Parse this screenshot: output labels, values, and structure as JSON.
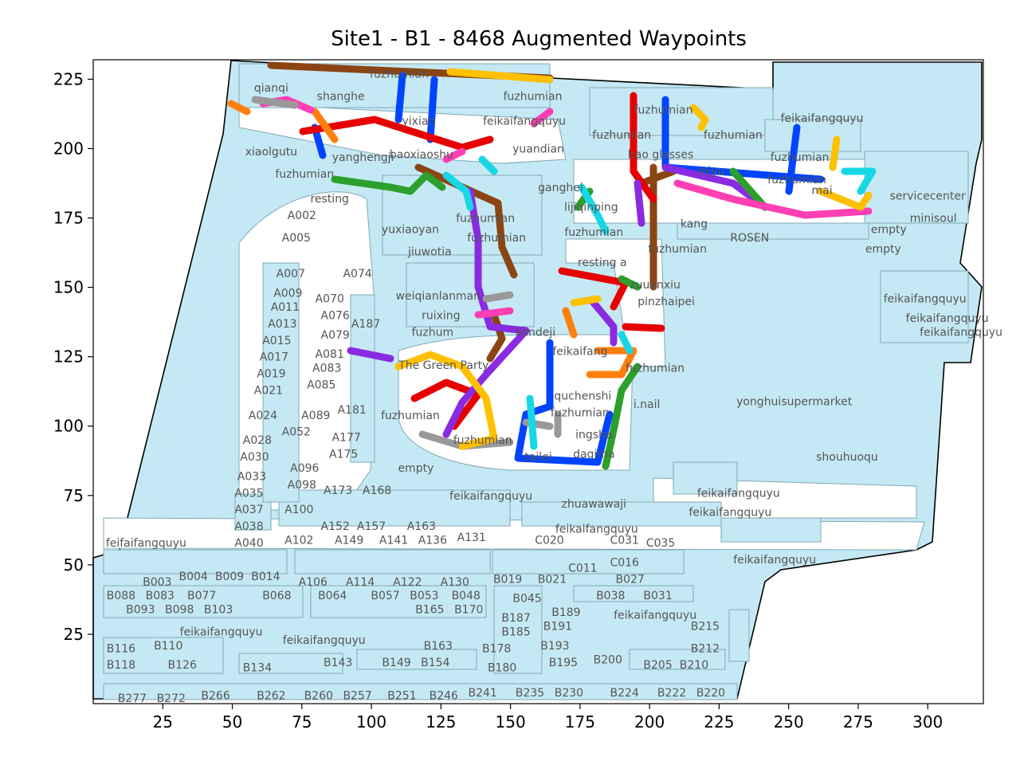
{
  "title": "Site1 - B1 - 8468 Augmented Waypoints",
  "xticks": [
    25,
    50,
    75,
    100,
    125,
    150,
    175,
    200,
    225,
    250,
    275,
    300
  ],
  "yticks": [
    25,
    50,
    75,
    100,
    125,
    150,
    175,
    200,
    225
  ],
  "xlim": [
    0,
    320
  ],
  "ylim": [
    0,
    232
  ],
  "colors": {
    "floor_fill": "#c5e9f4",
    "shop_edge": "#7fa9b5",
    "label": "#555555",
    "route_palette": [
      "#0044ff",
      "#ff7f0e",
      "#2ca02c",
      "#e60000",
      "#8a2be2",
      "#8b4513",
      "#ff3fb4",
      "#999999",
      "#ffc000",
      "#17d7e6"
    ]
  },
  "labels": [
    {
      "text": "qianqi",
      "x": 64,
      "y": 222
    },
    {
      "text": "shanghe",
      "x": 89,
      "y": 219
    },
    {
      "text": "fuzhumian",
      "x": 110,
      "y": 227
    },
    {
      "text": "fuzhumian",
      "x": 158,
      "y": 219
    },
    {
      "text": "yixian",
      "x": 117,
      "y": 210
    },
    {
      "text": "feikaifangquyu",
      "x": 155,
      "y": 210
    },
    {
      "text": "fuzhumian",
      "x": 205,
      "y": 214
    },
    {
      "text": "feikaifangquyu",
      "x": 262,
      "y": 211
    },
    {
      "text": "fuzhumian",
      "x": 190,
      "y": 205
    },
    {
      "text": "fuzhumian",
      "x": 230,
      "y": 205
    },
    {
      "text": "xiaolgutu",
      "x": 64,
      "y": 199
    },
    {
      "text": "yanghengji",
      "x": 97,
      "y": 197
    },
    {
      "text": "yuandian",
      "x": 160,
      "y": 200
    },
    {
      "text": "baoxiaoshu",
      "x": 118,
      "y": 198
    },
    {
      "text": "bao glasses",
      "x": 204,
      "y": 198
    },
    {
      "text": "miyu",
      "x": 222,
      "y": 192
    },
    {
      "text": "fuzhumian",
      "x": 254,
      "y": 197
    },
    {
      "text": "fuzhumian",
      "x": 253,
      "y": 189
    },
    {
      "text": "fuzhumian",
      "x": 76,
      "y": 191
    },
    {
      "text": "resting",
      "x": 85,
      "y": 182
    },
    {
      "text": "ganghei",
      "x": 168,
      "y": 186
    },
    {
      "text": "lijiqinping",
      "x": 179,
      "y": 179
    },
    {
      "text": "servicecenter",
      "x": 300,
      "y": 183
    },
    {
      "text": "minisoul",
      "x": 302,
      "y": 175
    },
    {
      "text": "mai",
      "x": 262,
      "y": 185
    },
    {
      "text": "fuzhumian",
      "x": 141,
      "y": 175
    },
    {
      "text": "yuxiaoyan",
      "x": 114,
      "y": 171
    },
    {
      "text": "fuzhumian",
      "x": 145,
      "y": 168
    },
    {
      "text": "A002",
      "x": 75,
      "y": 176
    },
    {
      "text": "fuzhumian",
      "x": 180,
      "y": 170
    },
    {
      "text": "kang",
      "x": 216,
      "y": 173
    },
    {
      "text": "ROSEN",
      "x": 236,
      "y": 168
    },
    {
      "text": "empty",
      "x": 286,
      "y": 171
    },
    {
      "text": "empty",
      "x": 284,
      "y": 164
    },
    {
      "text": "A005",
      "x": 73,
      "y": 168
    },
    {
      "text": "jiuwotia",
      "x": 121,
      "y": 163
    },
    {
      "text": "fuzhumian",
      "x": 210,
      "y": 164
    },
    {
      "text": "resting a",
      "x": 183,
      "y": 159
    },
    {
      "text": "A007",
      "x": 71,
      "y": 155
    },
    {
      "text": "A074",
      "x": 95,
      "y": 155
    },
    {
      "text": "zuuanxiu",
      "x": 202,
      "y": 151
    },
    {
      "text": "A009",
      "x": 70,
      "y": 148
    },
    {
      "text": "A070",
      "x": 85,
      "y": 146
    },
    {
      "text": "weiqianlanman",
      "x": 124,
      "y": 147
    },
    {
      "text": "pinzhaipei",
      "x": 206,
      "y": 145
    },
    {
      "text": "feikaifangquyu",
      "x": 299,
      "y": 146
    },
    {
      "text": "A011",
      "x": 69,
      "y": 143
    },
    {
      "text": "A076",
      "x": 87,
      "y": 140
    },
    {
      "text": "ruixing",
      "x": 125,
      "y": 140
    },
    {
      "text": "feikaifangquyu",
      "x": 307,
      "y": 139
    },
    {
      "text": "A013",
      "x": 68,
      "y": 137
    },
    {
      "text": "A187",
      "x": 98,
      "y": 137
    },
    {
      "text": "fuzhum",
      "x": 122,
      "y": 134
    },
    {
      "text": "kendeji",
      "x": 159,
      "y": 134
    },
    {
      "text": "A079",
      "x": 87,
      "y": 133
    },
    {
      "text": "feikaifangquyu",
      "x": 312,
      "y": 134
    },
    {
      "text": "A015",
      "x": 66,
      "y": 131
    },
    {
      "text": "A081",
      "x": 85,
      "y": 126
    },
    {
      "text": "feikaifang",
      "x": 175,
      "y": 127
    },
    {
      "text": "A017",
      "x": 65,
      "y": 125
    },
    {
      "text": "The Green Party",
      "x": 126,
      "y": 122
    },
    {
      "text": "A083",
      "x": 84,
      "y": 121
    },
    {
      "text": "fuzhumian",
      "x": 202,
      "y": 121
    },
    {
      "text": "A019",
      "x": 64,
      "y": 119
    },
    {
      "text": "A085",
      "x": 82,
      "y": 115
    },
    {
      "text": "A021",
      "x": 63,
      "y": 113
    },
    {
      "text": "quchenshi",
      "x": 176,
      "y": 111
    },
    {
      "text": "yonghuisupermarket",
      "x": 252,
      "y": 109
    },
    {
      "text": "fuzhumian",
      "x": 175,
      "y": 105
    },
    {
      "text": "i.nail",
      "x": 199,
      "y": 108
    },
    {
      "text": "A181",
      "x": 93,
      "y": 106
    },
    {
      "text": "A024",
      "x": 61,
      "y": 104
    },
    {
      "text": "A089",
      "x": 80,
      "y": 104
    },
    {
      "text": "fuzhumian",
      "x": 114,
      "y": 104
    },
    {
      "text": "ingsha",
      "x": 180,
      "y": 97
    },
    {
      "text": "A052",
      "x": 73,
      "y": 98
    },
    {
      "text": "A177",
      "x": 91,
      "y": 96
    },
    {
      "text": "fuzhumian",
      "x": 140,
      "y": 95
    },
    {
      "text": "A028",
      "x": 59,
      "y": 95
    },
    {
      "text": "A175",
      "x": 90,
      "y": 90
    },
    {
      "text": "daqima",
      "x": 180,
      "y": 90
    },
    {
      "text": "tailei",
      "x": 160,
      "y": 89
    },
    {
      "text": "shouhuoqu",
      "x": 271,
      "y": 89
    },
    {
      "text": "A030",
      "x": 58,
      "y": 89
    },
    {
      "text": "A096",
      "x": 76,
      "y": 85
    },
    {
      "text": "empty",
      "x": 116,
      "y": 85
    },
    {
      "text": "A033",
      "x": 57,
      "y": 82
    },
    {
      "text": "A098",
      "x": 75,
      "y": 79
    },
    {
      "text": "A173",
      "x": 88,
      "y": 77
    },
    {
      "text": "A168",
      "x": 102,
      "y": 77
    },
    {
      "text": "feikaifangquyu",
      "x": 143,
      "y": 75
    },
    {
      "text": "feikaifangquyu",
      "x": 232,
      "y": 76
    },
    {
      "text": "A035",
      "x": 56,
      "y": 76
    },
    {
      "text": "zhuawawaji",
      "x": 180,
      "y": 72
    },
    {
      "text": "A100",
      "x": 74,
      "y": 70
    },
    {
      "text": "feikaifangquyu",
      "x": 229,
      "y": 69
    },
    {
      "text": "A037",
      "x": 56,
      "y": 70
    },
    {
      "text": "A152",
      "x": 87,
      "y": 64
    },
    {
      "text": "A157",
      "x": 100,
      "y": 64
    },
    {
      "text": "A163",
      "x": 118,
      "y": 64
    },
    {
      "text": "feikaifangquyu",
      "x": 181,
      "y": 63
    },
    {
      "text": "A038",
      "x": 56,
      "y": 64
    },
    {
      "text": "C031",
      "x": 191,
      "y": 59
    },
    {
      "text": "C035",
      "x": 204,
      "y": 58
    },
    {
      "text": "feifaifangquyu",
      "x": 19,
      "y": 58
    },
    {
      "text": "A040",
      "x": 56,
      "y": 58
    },
    {
      "text": "A102",
      "x": 74,
      "y": 59
    },
    {
      "text": "A149",
      "x": 92,
      "y": 59
    },
    {
      "text": "A141",
      "x": 108,
      "y": 59
    },
    {
      "text": "A136",
      "x": 122,
      "y": 59
    },
    {
      "text": "A131",
      "x": 136,
      "y": 60
    },
    {
      "text": "C020",
      "x": 164,
      "y": 59
    },
    {
      "text": "feikaifangquyu",
      "x": 245,
      "y": 52
    },
    {
      "text": "C016",
      "x": 191,
      "y": 51
    },
    {
      "text": "C011",
      "x": 176,
      "y": 49
    },
    {
      "text": "B003",
      "x": 23,
      "y": 44
    },
    {
      "text": "B004",
      "x": 36,
      "y": 46
    },
    {
      "text": "B009",
      "x": 49,
      "y": 46
    },
    {
      "text": "B014",
      "x": 62,
      "y": 46
    },
    {
      "text": "A106",
      "x": 79,
      "y": 44
    },
    {
      "text": "A114",
      "x": 96,
      "y": 44
    },
    {
      "text": "A122",
      "x": 113,
      "y": 44
    },
    {
      "text": "A130",
      "x": 130,
      "y": 44
    },
    {
      "text": "B019",
      "x": 149,
      "y": 45
    },
    {
      "text": "B021",
      "x": 165,
      "y": 45
    },
    {
      "text": "B027",
      "x": 193,
      "y": 45
    },
    {
      "text": "B088",
      "x": 10,
      "y": 39
    },
    {
      "text": "B083",
      "x": 24,
      "y": 39
    },
    {
      "text": "B077",
      "x": 39,
      "y": 39
    },
    {
      "text": "B068",
      "x": 66,
      "y": 39
    },
    {
      "text": "B064",
      "x": 86,
      "y": 39
    },
    {
      "text": "B057",
      "x": 105,
      "y": 39
    },
    {
      "text": "B053",
      "x": 119,
      "y": 39
    },
    {
      "text": "B048",
      "x": 134,
      "y": 39
    },
    {
      "text": "B045",
      "x": 156,
      "y": 38
    },
    {
      "text": "B038",
      "x": 186,
      "y": 39
    },
    {
      "text": "B031",
      "x": 203,
      "y": 39
    },
    {
      "text": "B093",
      "x": 17,
      "y": 34
    },
    {
      "text": "B098",
      "x": 31,
      "y": 34
    },
    {
      "text": "B103",
      "x": 45,
      "y": 34
    },
    {
      "text": "B165",
      "x": 121,
      "y": 34
    },
    {
      "text": "B170",
      "x": 135,
      "y": 34
    },
    {
      "text": "B189",
      "x": 170,
      "y": 33
    },
    {
      "text": "feikaifangquyu",
      "x": 202,
      "y": 32
    },
    {
      "text": "B187",
      "x": 152,
      "y": 31
    },
    {
      "text": "B191",
      "x": 167,
      "y": 28
    },
    {
      "text": "B215",
      "x": 220,
      "y": 28
    },
    {
      "text": "feikaifangquyu",
      "x": 46,
      "y": 26
    },
    {
      "text": "B185",
      "x": 152,
      "y": 26
    },
    {
      "text": "feikaifangquyu",
      "x": 83,
      "y": 23
    },
    {
      "text": "B193",
      "x": 166,
      "y": 21
    },
    {
      "text": "B116",
      "x": 10,
      "y": 20
    },
    {
      "text": "B110",
      "x": 27,
      "y": 21
    },
    {
      "text": "B163",
      "x": 124,
      "y": 21
    },
    {
      "text": "B178",
      "x": 145,
      "y": 20
    },
    {
      "text": "B212",
      "x": 220,
      "y": 20
    },
    {
      "text": "B143",
      "x": 88,
      "y": 15
    },
    {
      "text": "B149",
      "x": 109,
      "y": 15
    },
    {
      "text": "B154",
      "x": 123,
      "y": 15
    },
    {
      "text": "B195",
      "x": 169,
      "y": 15
    },
    {
      "text": "B200",
      "x": 185,
      "y": 16
    },
    {
      "text": "B205",
      "x": 203,
      "y": 14
    },
    {
      "text": "B210",
      "x": 216,
      "y": 14
    },
    {
      "text": "B118",
      "x": 10,
      "y": 14
    },
    {
      "text": "B126",
      "x": 32,
      "y": 14
    },
    {
      "text": "B134",
      "x": 59,
      "y": 13
    },
    {
      "text": "B180",
      "x": 147,
      "y": 13
    },
    {
      "text": "B277",
      "x": 14,
      "y": 2
    },
    {
      "text": "B272",
      "x": 28,
      "y": 2
    },
    {
      "text": "B266",
      "x": 44,
      "y": 3
    },
    {
      "text": "B262",
      "x": 64,
      "y": 3
    },
    {
      "text": "B260",
      "x": 81,
      "y": 3
    },
    {
      "text": "B257",
      "x": 95,
      "y": 3
    },
    {
      "text": "B251",
      "x": 111,
      "y": 3
    },
    {
      "text": "B246",
      "x": 126,
      "y": 3
    },
    {
      "text": "B241",
      "x": 140,
      "y": 4
    },
    {
      "text": "B235",
      "x": 157,
      "y": 4
    },
    {
      "text": "B230",
      "x": 171,
      "y": 4
    },
    {
      "text": "B224",
      "x": 191,
      "y": 4
    },
    {
      "text": "B222",
      "x": 208,
      "y": 4
    },
    {
      "text": "B220",
      "x": 222,
      "y": 4
    }
  ]
}
